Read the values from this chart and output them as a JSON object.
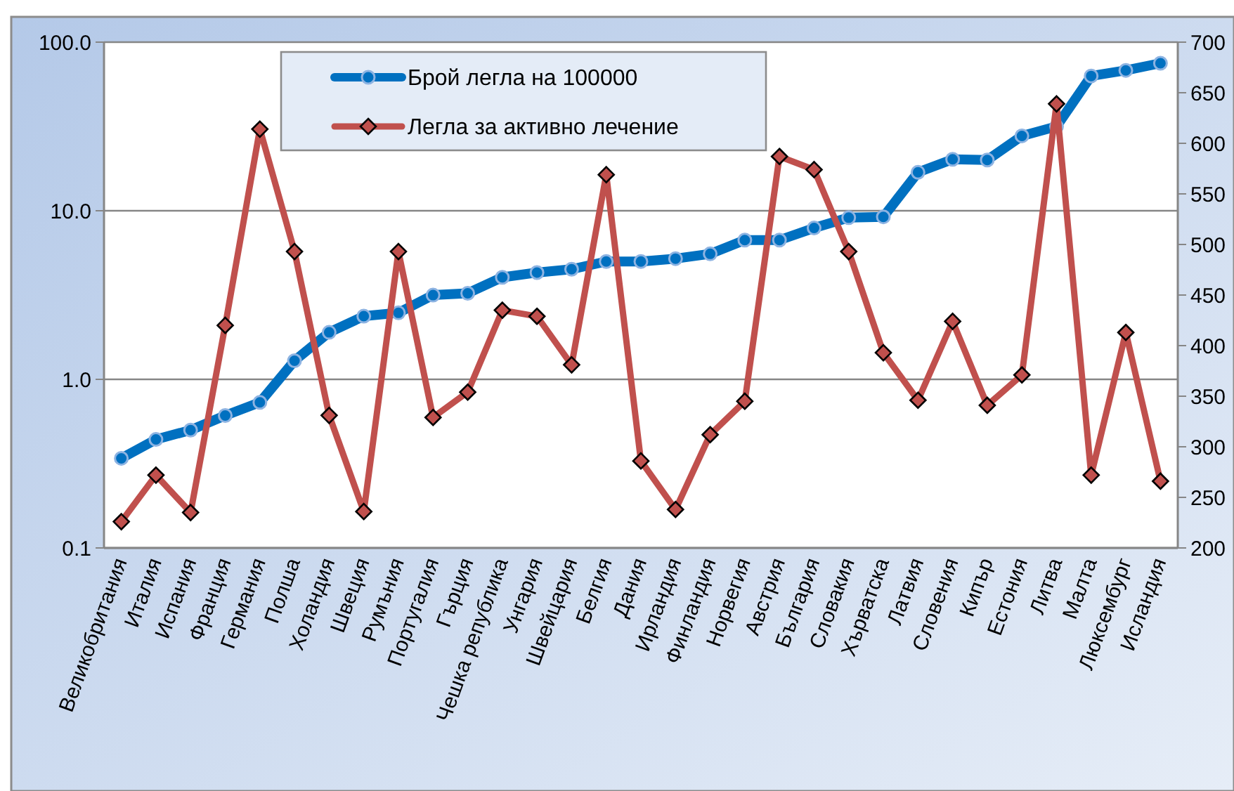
{
  "chart_data": {
    "type": "line",
    "categories": [
      "Великобритания",
      "Италия",
      "Испания",
      "Франция",
      "Германия",
      "Полша",
      "Холандия",
      "Швеция",
      "Румъния",
      "Португалия",
      "Гърция",
      "Чешка република",
      "Унгария",
      "Швейцария",
      "Белгия",
      "Дания",
      "Ирландия",
      "Финландия",
      "Норвегия",
      "Австрия",
      "България",
      "Словакия",
      "Хърватска",
      "Латвия",
      "Словения",
      "Кипър",
      "Естония",
      "Литва",
      "Малта",
      "Люксембург",
      "Исландия"
    ],
    "series": [
      {
        "name": "Брой легла на 100000",
        "color": "#0070c0",
        "marker": "circle",
        "values": [
          0.34,
          0.44,
          0.5,
          0.61,
          0.73,
          1.29,
          1.9,
          2.37,
          2.48,
          3.16,
          3.24,
          4.03,
          4.3,
          4.5,
          5.0,
          5.0,
          5.2,
          5.55,
          6.7,
          6.7,
          7.9,
          9.1,
          9.2,
          16.9,
          20.2,
          20,
          27.8,
          31.6,
          63,
          68,
          75
        ]
      },
      {
        "name": "Легла за активно  лечение",
        "color": "#c0504d",
        "marker": "diamond",
        "axis": "y2",
        "values": [
          226,
          272,
          235,
          420,
          614,
          493,
          331,
          236,
          493,
          329,
          354,
          435,
          429,
          381,
          569,
          286,
          238,
          312,
          345,
          587,
          574,
          493,
          393,
          346,
          424,
          341,
          371,
          639,
          272,
          413,
          266
        ]
      }
    ],
    "log": "y",
    "ylim": [
      0.1,
      100
    ],
    "yticks": [
      {
        "value": 0.1,
        "label": "0.1"
      },
      {
        "value": 1,
        "label": "1.0"
      },
      {
        "value": 10,
        "label": "10.0"
      },
      {
        "value": 100,
        "label": "100.0"
      }
    ],
    "y2lim": [
      200,
      700
    ],
    "y2ticks": [
      200,
      250,
      300,
      350,
      400,
      450,
      500,
      550,
      600,
      650,
      700
    ],
    "grid": "y",
    "legend": "top"
  }
}
